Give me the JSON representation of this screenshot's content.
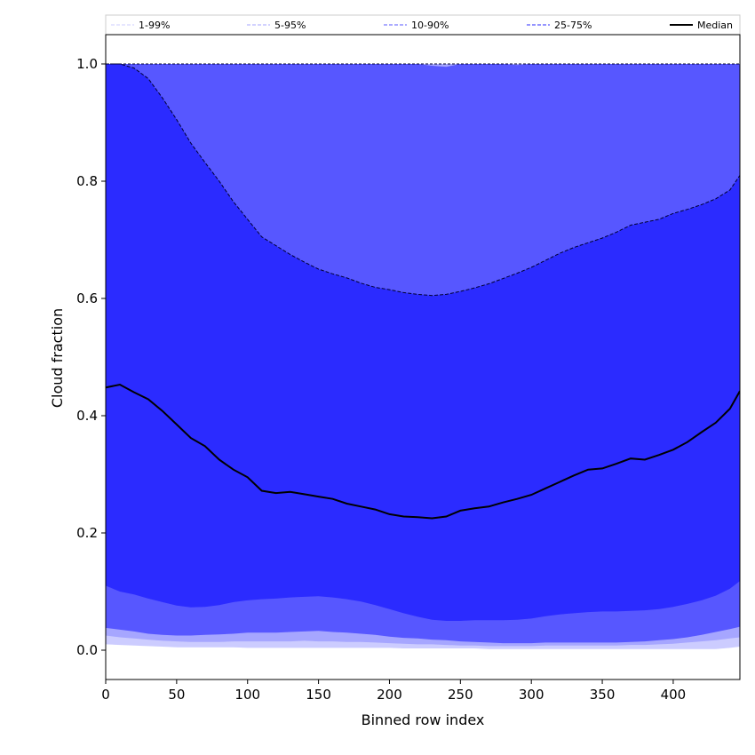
{
  "chart_data": {
    "type": "area",
    "xlabel": "Binned row index",
    "ylabel": "Cloud fraction",
    "xlim": [
      0,
      447
    ],
    "ylim": [
      -0.05,
      1.05
    ],
    "xticks": [
      0,
      50,
      100,
      150,
      200,
      250,
      300,
      350,
      400
    ],
    "yticks": [
      0.0,
      0.2,
      0.4,
      0.6,
      0.8,
      1.0
    ],
    "ytick_labels": [
      "0.0",
      "0.2",
      "0.4",
      "0.6",
      "0.8",
      "1.0"
    ],
    "grid": false,
    "legend_position": "top, full width above plot",
    "x": [
      0,
      10,
      20,
      30,
      40,
      50,
      60,
      70,
      80,
      90,
      100,
      110,
      120,
      130,
      140,
      150,
      160,
      170,
      180,
      190,
      200,
      210,
      220,
      230,
      240,
      250,
      260,
      270,
      280,
      290,
      300,
      310,
      320,
      330,
      340,
      350,
      360,
      370,
      380,
      390,
      400,
      410,
      420,
      430,
      440,
      447
    ],
    "series": [
      {
        "name": "1-99%",
        "color": "#ccccff",
        "lower": [
          0.01,
          0.009,
          0.008,
          0.007,
          0.006,
          0.005,
          0.005,
          0.005,
          0.005,
          0.005,
          0.004,
          0.004,
          0.004,
          0.004,
          0.004,
          0.004,
          0.004,
          0.004,
          0.004,
          0.004,
          0.004,
          0.003,
          0.003,
          0.003,
          0.003,
          0.003,
          0.003,
          0.002,
          0.002,
          0.002,
          0.002,
          0.002,
          0.002,
          0.002,
          0.002,
          0.002,
          0.002,
          0.002,
          0.002,
          0.002,
          0.002,
          0.002,
          0.002,
          0.002,
          0.004,
          0.006
        ],
        "upper": [
          1.0,
          1.0,
          1.0,
          1.0,
          1.0,
          1.0,
          1.0,
          1.0,
          1.0,
          1.0,
          1.0,
          1.0,
          1.0,
          1.0,
          1.0,
          1.0,
          1.0,
          1.0,
          1.0,
          1.0,
          1.0,
          1.0,
          1.0,
          1.0,
          1.0,
          1.0,
          1.0,
          1.0,
          1.0,
          1.0,
          1.0,
          1.0,
          1.0,
          1.0,
          1.0,
          1.0,
          1.0,
          1.0,
          1.0,
          1.0,
          1.0,
          1.0,
          1.0,
          1.0,
          1.0,
          1.0
        ]
      },
      {
        "name": "5-95%",
        "color": "#a6a6ff",
        "lower": [
          0.025,
          0.022,
          0.02,
          0.018,
          0.016,
          0.015,
          0.014,
          0.014,
          0.014,
          0.015,
          0.015,
          0.015,
          0.015,
          0.015,
          0.016,
          0.015,
          0.015,
          0.014,
          0.014,
          0.013,
          0.012,
          0.011,
          0.01,
          0.01,
          0.009,
          0.008,
          0.008,
          0.007,
          0.007,
          0.007,
          0.007,
          0.008,
          0.008,
          0.008,
          0.008,
          0.008,
          0.008,
          0.009,
          0.009,
          0.01,
          0.011,
          0.013,
          0.015,
          0.017,
          0.02,
          0.022
        ],
        "upper": [
          1.0,
          1.0,
          1.0,
          1.0,
          1.0,
          1.0,
          1.0,
          1.0,
          1.0,
          1.0,
          1.0,
          1.0,
          1.0,
          1.0,
          1.0,
          1.0,
          1.0,
          1.0,
          1.0,
          1.0,
          1.0,
          1.0,
          1.0,
          1.0,
          1.0,
          1.0,
          1.0,
          1.0,
          1.0,
          1.0,
          1.0,
          1.0,
          1.0,
          1.0,
          1.0,
          1.0,
          1.0,
          1.0,
          1.0,
          1.0,
          1.0,
          1.0,
          1.0,
          1.0,
          1.0,
          1.0
        ]
      },
      {
        "name": "10-90%",
        "color": "#5757ff",
        "lower": [
          0.038,
          0.035,
          0.032,
          0.028,
          0.026,
          0.025,
          0.025,
          0.026,
          0.027,
          0.028,
          0.03,
          0.03,
          0.03,
          0.031,
          0.032,
          0.033,
          0.031,
          0.03,
          0.028,
          0.026,
          0.023,
          0.021,
          0.02,
          0.018,
          0.017,
          0.015,
          0.014,
          0.013,
          0.012,
          0.012,
          0.012,
          0.013,
          0.013,
          0.013,
          0.013,
          0.013,
          0.013,
          0.014,
          0.015,
          0.017,
          0.019,
          0.022,
          0.026,
          0.031,
          0.036,
          0.04
        ],
        "upper": [
          1.0,
          1.0,
          1.0,
          1.0,
          1.0,
          1.0,
          1.0,
          1.0,
          1.0,
          1.0,
          1.0,
          1.0,
          1.0,
          1.0,
          1.0,
          1.0,
          1.0,
          1.0,
          1.0,
          1.0,
          1.0,
          1.0,
          1.0,
          0.997,
          0.995,
          1.0,
          1.0,
          1.0,
          1.0,
          0.998,
          1.0,
          1.0,
          1.0,
          1.0,
          1.0,
          1.0,
          1.0,
          1.0,
          1.0,
          1.0,
          1.0,
          1.0,
          1.0,
          1.0,
          1.0,
          1.0
        ]
      },
      {
        "name": "25-75%",
        "color": "#2b2bff",
        "lower": [
          0.11,
          0.1,
          0.095,
          0.088,
          0.082,
          0.076,
          0.073,
          0.074,
          0.077,
          0.082,
          0.085,
          0.087,
          0.088,
          0.09,
          0.091,
          0.092,
          0.09,
          0.087,
          0.083,
          0.077,
          0.07,
          0.063,
          0.057,
          0.052,
          0.05,
          0.05,
          0.051,
          0.051,
          0.051,
          0.052,
          0.054,
          0.058,
          0.061,
          0.063,
          0.065,
          0.066,
          0.066,
          0.067,
          0.068,
          0.07,
          0.074,
          0.079,
          0.085,
          0.093,
          0.105,
          0.118
        ],
        "upper": [
          1.0,
          1.0,
          0.993,
          0.975,
          0.942,
          0.905,
          0.865,
          0.832,
          0.8,
          0.765,
          0.735,
          0.705,
          0.69,
          0.675,
          0.662,
          0.65,
          0.642,
          0.635,
          0.626,
          0.619,
          0.615,
          0.61,
          0.607,
          0.605,
          0.607,
          0.612,
          0.618,
          0.625,
          0.634,
          0.643,
          0.653,
          0.665,
          0.677,
          0.687,
          0.695,
          0.703,
          0.713,
          0.725,
          0.73,
          0.735,
          0.745,
          0.752,
          0.76,
          0.77,
          0.785,
          0.81
        ]
      }
    ],
    "median": {
      "name": "Median",
      "color": "#000000",
      "values": [
        0.448,
        0.453,
        0.44,
        0.428,
        0.408,
        0.385,
        0.362,
        0.348,
        0.325,
        0.308,
        0.295,
        0.272,
        0.268,
        0.27,
        0.266,
        0.262,
        0.258,
        0.25,
        0.245,
        0.24,
        0.232,
        0.228,
        0.227,
        0.225,
        0.228,
        0.238,
        0.242,
        0.245,
        0.252,
        0.258,
        0.265,
        0.276,
        0.287,
        0.298,
        0.308,
        0.31,
        0.318,
        0.327,
        0.325,
        0.333,
        0.342,
        0.355,
        0.372,
        0.388,
        0.412,
        0.442
      ]
    }
  }
}
